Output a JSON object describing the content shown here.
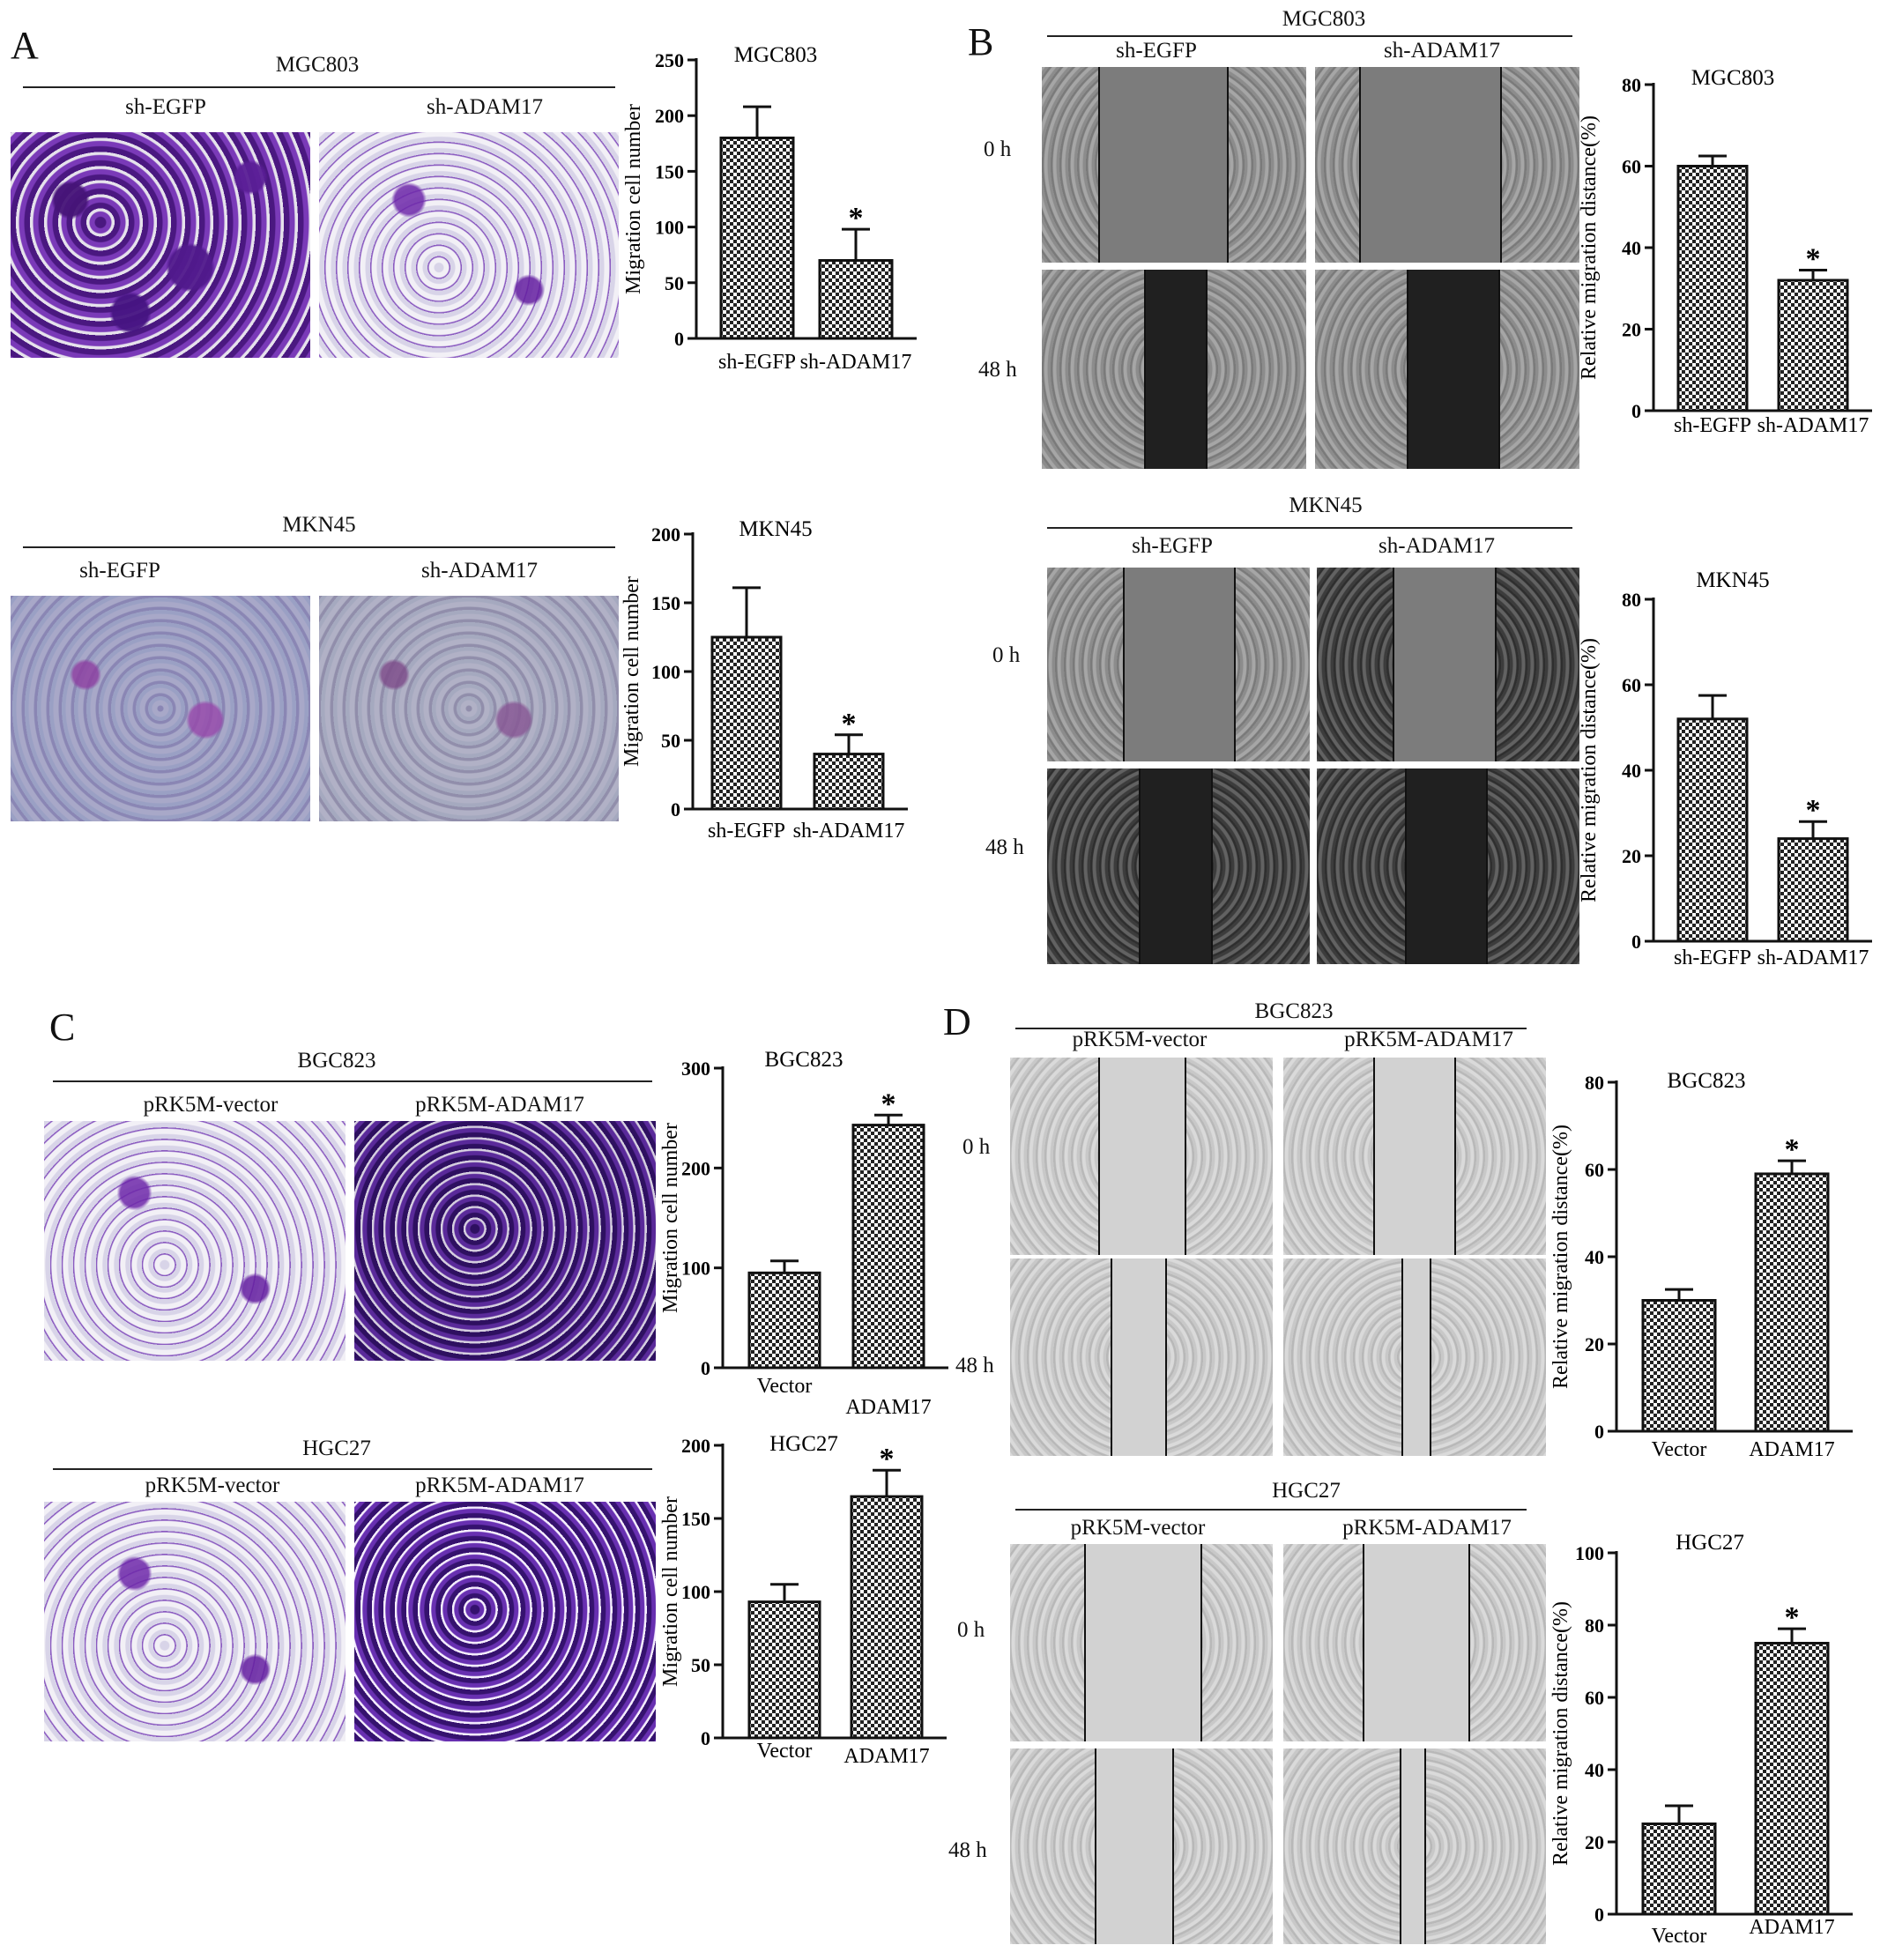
{
  "figure": {
    "panel_labels": {
      "A": "A",
      "B": "B",
      "C": "C",
      "D": "D"
    },
    "time_labels": {
      "t0": "0 h",
      "t48": "48 h"
    },
    "panel_A": {
      "blocks": [
        {
          "cell_line": "MGC803",
          "left_label": "sh-EGFP",
          "right_label": "sh-ADAM17"
        },
        {
          "cell_line": "MKN45",
          "left_label": "sh-EGFP",
          "right_label": "sh-ADAM17"
        }
      ]
    },
    "panel_B": {
      "blocks": [
        {
          "cell_line": "MGC803",
          "left_label": "sh-EGFP",
          "right_label": "sh-ADAM17"
        },
        {
          "cell_line": "MKN45",
          "left_label": "sh-EGFP",
          "right_label": "sh-ADAM17"
        }
      ]
    },
    "panel_C": {
      "blocks": [
        {
          "cell_line": "BGC823",
          "left_label": "pRK5M-vector",
          "right_label": "pRK5M-ADAM17"
        },
        {
          "cell_line": "HGC27",
          "left_label": "pRK5M-vector",
          "right_label": "pRK5M-ADAM17"
        }
      ]
    },
    "panel_D": {
      "blocks": [
        {
          "cell_line": "BGC823",
          "left_label": "pRK5M-vector",
          "right_label": "pRK5M-ADAM17"
        },
        {
          "cell_line": "HGC27",
          "left_label": "pRK5M-vector",
          "right_label": "pRK5M-ADAM17"
        }
      ]
    }
  },
  "chart_data": [
    {
      "id": "A1",
      "type": "bar",
      "title": "MGC803",
      "ylabel": "Migration cell number",
      "categories": [
        "sh-EGFP",
        "sh-ADAM17"
      ],
      "values": [
        180,
        70
      ],
      "errors": [
        28,
        28
      ],
      "significance": [
        "",
        "*"
      ],
      "ylim": [
        0,
        250
      ],
      "yticks": [
        0,
        50,
        100,
        150,
        200,
        250
      ]
    },
    {
      "id": "A2",
      "type": "bar",
      "title": "MKN45",
      "ylabel": "Migration cell number",
      "categories": [
        "sh-EGFP",
        "sh-ADAM17"
      ],
      "values": [
        125,
        40
      ],
      "errors": [
        36,
        14
      ],
      "significance": [
        "",
        "*"
      ],
      "ylim": [
        0,
        200
      ],
      "yticks": [
        0,
        50,
        100,
        150,
        200
      ]
    },
    {
      "id": "B1",
      "type": "bar",
      "title": "MGC803",
      "ylabel": "Relative migration distance(%)",
      "categories": [
        "sh-EGFP",
        "sh-ADAM17"
      ],
      "values": [
        60,
        32
      ],
      "errors": [
        2.5,
        2.5
      ],
      "significance": [
        "",
        "*"
      ],
      "ylim": [
        0,
        80
      ],
      "yticks": [
        0,
        20,
        40,
        60,
        80
      ]
    },
    {
      "id": "B2",
      "type": "bar",
      "title": "MKN45",
      "ylabel": "Relative migration distance(%)",
      "categories": [
        "sh-EGFP",
        "sh-ADAM17"
      ],
      "values": [
        52,
        24
      ],
      "errors": [
        5.5,
        4
      ],
      "significance": [
        "",
        "*"
      ],
      "ylim": [
        0,
        80
      ],
      "yticks": [
        0,
        20,
        40,
        60,
        80
      ]
    },
    {
      "id": "C1",
      "type": "bar",
      "title": "BGC823",
      "ylabel": "Migration cell number",
      "categories": [
        "Vector",
        "ADAM17"
      ],
      "values": [
        95,
        243
      ],
      "errors": [
        12,
        10
      ],
      "significance": [
        "",
        "*"
      ],
      "ylim": [
        0,
        300
      ],
      "yticks": [
        0,
        100,
        200,
        300
      ]
    },
    {
      "id": "C2",
      "type": "bar",
      "title": "HGC27",
      "ylabel": "Migration cell number",
      "categories": [
        "Vector",
        "ADAM17"
      ],
      "values": [
        93,
        165
      ],
      "errors": [
        12,
        18
      ],
      "significance": [
        "",
        "*"
      ],
      "ylim": [
        0,
        200
      ],
      "yticks": [
        0,
        50,
        100,
        150,
        200
      ]
    },
    {
      "id": "D1",
      "type": "bar",
      "title": "BGC823",
      "ylabel": "Relative migration distance(%)",
      "categories": [
        "Vector",
        "ADAM17"
      ],
      "values": [
        30,
        59
      ],
      "errors": [
        2.5,
        3
      ],
      "significance": [
        "",
        "*"
      ],
      "ylim": [
        0,
        80
      ],
      "yticks": [
        0,
        20,
        40,
        60,
        80
      ]
    },
    {
      "id": "D2",
      "type": "bar",
      "title": "HGC27",
      "ylabel": "Relative migration distance(%)",
      "categories": [
        "Vector",
        "ADAM17"
      ],
      "values": [
        25,
        75
      ],
      "errors": [
        5,
        4
      ],
      "significance": [
        "",
        "*"
      ],
      "ylim": [
        0,
        100
      ],
      "yticks": [
        0,
        20,
        40,
        60,
        80,
        100
      ]
    }
  ]
}
